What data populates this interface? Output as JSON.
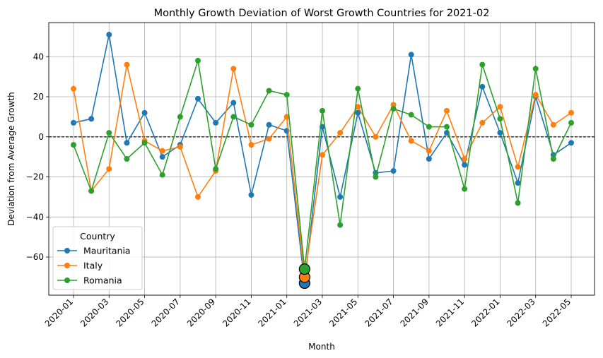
{
  "chart_data": {
    "type": "line",
    "title": "Monthly Growth Deviation of Worst Growth Countries for 2021-02",
    "xlabel": "Month",
    "ylabel": "Deviation from Average Growth",
    "ylim": [
      -79,
      57
    ],
    "yticks": [
      -60,
      -40,
      -20,
      0,
      20,
      40
    ],
    "xtick_labels": [
      "2020-01",
      "2020-03",
      "2020-05",
      "2020-07",
      "2020-09",
      "2020-11",
      "2021-01",
      "2021-03",
      "2021-05",
      "2021-07",
      "2021-09",
      "2021-11",
      "2022-01",
      "2022-03",
      "2022-05"
    ],
    "x": [
      "2020-01",
      "2020-02",
      "2020-03",
      "2020-04",
      "2020-05",
      "2020-06",
      "2020-07",
      "2020-08",
      "2020-09",
      "2020-10",
      "2020-11",
      "2020-12",
      "2021-01",
      "2021-02",
      "2021-03",
      "2021-04",
      "2021-05",
      "2021-06",
      "2021-07",
      "2021-08",
      "2021-09",
      "2021-10",
      "2021-11",
      "2021-12",
      "2022-01",
      "2022-02",
      "2022-03",
      "2022-04",
      "2022-05"
    ],
    "highlight_month": "2021-02",
    "reference_line": 0,
    "grid": true,
    "legend_title": "Country",
    "legend_position": "lower-left",
    "series": [
      {
        "name": "Mauritania",
        "color": "#1f77b4",
        "values": [
          7,
          9,
          51,
          -3,
          12,
          -10,
          -4,
          19,
          7,
          17,
          -29,
          6,
          3,
          -73,
          5,
          -30,
          12,
          -18,
          -17,
          41,
          -11,
          2,
          -14,
          25,
          2,
          -23,
          20,
          -9,
          -3
        ]
      },
      {
        "name": "Italy",
        "color": "#ff7f0e",
        "values": [
          24,
          -27,
          -16,
          36,
          -2,
          -7,
          -5,
          -30,
          -17,
          34,
          -4,
          -1,
          10,
          -70,
          -9,
          2,
          15,
          0,
          16,
          -2,
          -7,
          13,
          -11,
          7,
          15,
          -15,
          21,
          6,
          12
        ]
      },
      {
        "name": "Romania",
        "color": "#2ca02c",
        "values": [
          -4,
          -27,
          2,
          -11,
          -3,
          -19,
          10,
          38,
          -16,
          10,
          6,
          23,
          21,
          -66,
          13,
          -44,
          24,
          -20,
          14,
          11,
          5,
          5,
          -26,
          36,
          9,
          -33,
          34,
          -11,
          7
        ]
      }
    ]
  }
}
